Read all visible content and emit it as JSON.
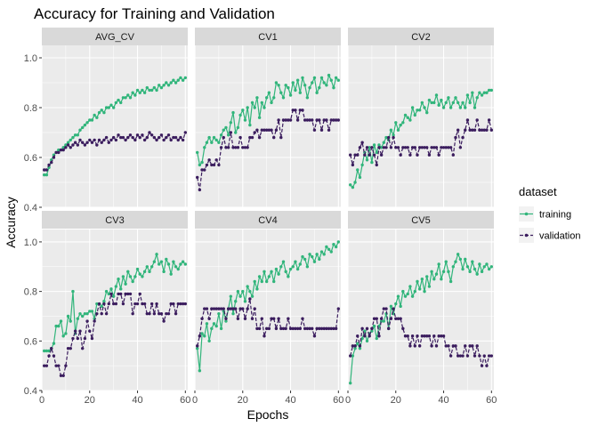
{
  "chart_data": {
    "type": "line",
    "title": "Accuracy for Training and Validation",
    "xlabel": "Epochs",
    "ylabel": "Accuracy",
    "facet_layout": {
      "rows": 2,
      "cols": 3
    },
    "x_range": [
      0,
      61
    ],
    "x_ticks": [
      0,
      20,
      40,
      60
    ],
    "y_range_top_row": [
      0.4,
      1.05
    ],
    "y_ticks_top_row": [
      0.4,
      0.6,
      0.8,
      1.0
    ],
    "y_range_bottom_row": [
      0.4,
      1.05
    ],
    "y_ticks_bottom_row": [
      0.4,
      0.6,
      0.8,
      1.0
    ],
    "grid": true,
    "legend": {
      "title": "dataset",
      "position": "right",
      "entries": [
        {
          "name": "training",
          "color": "#31b57b"
        },
        {
          "name": "validation",
          "color": "#3b1d5e"
        }
      ]
    },
    "x": [
      1,
      2,
      3,
      4,
      5,
      6,
      7,
      8,
      9,
      10,
      11,
      12,
      13,
      14,
      15,
      16,
      17,
      18,
      19,
      20,
      21,
      22,
      23,
      24,
      25,
      26,
      27,
      28,
      29,
      30,
      31,
      32,
      33,
      34,
      35,
      36,
      37,
      38,
      39,
      40,
      41,
      42,
      43,
      44,
      45,
      46,
      47,
      48,
      49,
      50,
      51,
      52,
      53,
      54,
      55,
      56,
      57,
      58,
      59,
      60
    ],
    "panels": [
      {
        "label": "AVG_CV",
        "series": [
          {
            "name": "training",
            "values": [
              0.53,
              0.53,
              0.56,
              0.59,
              0.61,
              0.62,
              0.63,
              0.63,
              0.64,
              0.65,
              0.66,
              0.67,
              0.68,
              0.69,
              0.69,
              0.71,
              0.72,
              0.73,
              0.74,
              0.75,
              0.75,
              0.77,
              0.76,
              0.78,
              0.79,
              0.78,
              0.8,
              0.8,
              0.81,
              0.8,
              0.82,
              0.83,
              0.82,
              0.84,
              0.84,
              0.85,
              0.84,
              0.86,
              0.85,
              0.87,
              0.86,
              0.87,
              0.86,
              0.88,
              0.87,
              0.87,
              0.88,
              0.87,
              0.89,
              0.88,
              0.89,
              0.9,
              0.89,
              0.9,
              0.91,
              0.9,
              0.91,
              0.92,
              0.91,
              0.92
            ]
          },
          {
            "name": "validation",
            "values": [
              0.55,
              0.55,
              0.57,
              0.58,
              0.6,
              0.62,
              0.62,
              0.63,
              0.63,
              0.64,
              0.65,
              0.64,
              0.65,
              0.66,
              0.65,
              0.67,
              0.66,
              0.65,
              0.66,
              0.67,
              0.66,
              0.67,
              0.65,
              0.67,
              0.66,
              0.67,
              0.68,
              0.66,
              0.67,
              0.68,
              0.67,
              0.69,
              0.68,
              0.68,
              0.67,
              0.68,
              0.69,
              0.68,
              0.67,
              0.69,
              0.68,
              0.69,
              0.67,
              0.68,
              0.7,
              0.69,
              0.68,
              0.67,
              0.68,
              0.69,
              0.67,
              0.68,
              0.69,
              0.67,
              0.68,
              0.68,
              0.67,
              0.68,
              0.67,
              0.7
            ]
          }
        ]
      },
      {
        "label": "CV1",
        "series": [
          {
            "name": "training",
            "values": [
              0.62,
              0.57,
              0.58,
              0.64,
              0.66,
              0.68,
              0.66,
              0.68,
              0.67,
              0.66,
              0.69,
              0.71,
              0.72,
              0.69,
              0.74,
              0.78,
              0.7,
              0.72,
              0.77,
              0.79,
              0.75,
              0.8,
              0.73,
              0.82,
              0.8,
              0.84,
              0.76,
              0.82,
              0.8,
              0.84,
              0.86,
              0.82,
              0.84,
              0.9,
              0.89,
              0.86,
              0.84,
              0.89,
              0.88,
              0.85,
              0.9,
              0.87,
              0.91,
              0.86,
              0.92,
              0.89,
              0.84,
              0.88,
              0.9,
              0.92,
              0.86,
              0.88,
              0.92,
              0.9,
              0.89,
              0.93,
              0.91,
              0.88,
              0.92,
              0.91
            ]
          },
          {
            "name": "validation",
            "values": [
              0.52,
              0.47,
              0.55,
              0.55,
              0.57,
              0.59,
              0.57,
              0.57,
              0.59,
              0.57,
              0.64,
              0.68,
              0.64,
              0.64,
              0.7,
              0.64,
              0.64,
              0.64,
              0.68,
              0.64,
              0.64,
              0.64,
              0.68,
              0.68,
              0.7,
              0.71,
              0.68,
              0.71,
              0.71,
              0.71,
              0.71,
              0.71,
              0.68,
              0.71,
              0.75,
              0.68,
              0.75,
              0.75,
              0.75,
              0.75,
              0.79,
              0.79,
              0.75,
              0.79,
              0.79,
              0.75,
              0.75,
              0.75,
              0.75,
              0.71,
              0.75,
              0.75,
              0.71,
              0.75,
              0.75,
              0.71,
              0.75,
              0.75,
              0.75,
              0.75
            ]
          }
        ]
      },
      {
        "label": "CV2",
        "series": [
          {
            "name": "training",
            "values": [
              0.49,
              0.48,
              0.5,
              0.55,
              0.52,
              0.57,
              0.62,
              0.59,
              0.64,
              0.58,
              0.65,
              0.62,
              0.65,
              0.64,
              0.66,
              0.68,
              0.67,
              0.71,
              0.69,
              0.74,
              0.71,
              0.73,
              0.74,
              0.77,
              0.76,
              0.75,
              0.8,
              0.77,
              0.79,
              0.79,
              0.82,
              0.8,
              0.78,
              0.83,
              0.82,
              0.82,
              0.85,
              0.81,
              0.83,
              0.8,
              0.82,
              0.84,
              0.8,
              0.82,
              0.84,
              0.82,
              0.8,
              0.82,
              0.8,
              0.85,
              0.82,
              0.86,
              0.8,
              0.84,
              0.86,
              0.85,
              0.86,
              0.86,
              0.87,
              0.87
            ]
          },
          {
            "name": "validation",
            "values": [
              0.61,
              0.57,
              0.61,
              0.61,
              0.64,
              0.66,
              0.61,
              0.64,
              0.61,
              0.64,
              0.61,
              0.57,
              0.64,
              0.61,
              0.64,
              0.64,
              0.68,
              0.64,
              0.68,
              0.64,
              0.64,
              0.61,
              0.64,
              0.64,
              0.64,
              0.61,
              0.64,
              0.64,
              0.61,
              0.64,
              0.64,
              0.64,
              0.64,
              0.61,
              0.64,
              0.64,
              0.64,
              0.61,
              0.64,
              0.64,
              0.64,
              0.64,
              0.64,
              0.61,
              0.68,
              0.71,
              0.64,
              0.68,
              0.71,
              0.75,
              0.71,
              0.71,
              0.71,
              0.75,
              0.71,
              0.71,
              0.71,
              0.71,
              0.75,
              0.71
            ]
          }
        ]
      },
      {
        "label": "CV3",
        "series": [
          {
            "name": "training",
            "values": [
              0.56,
              0.56,
              0.56,
              0.57,
              0.59,
              0.66,
              0.66,
              0.68,
              0.62,
              0.63,
              0.7,
              0.68,
              0.8,
              0.63,
              0.69,
              0.71,
              0.7,
              0.71,
              0.71,
              0.72,
              0.72,
              0.69,
              0.75,
              0.75,
              0.74,
              0.76,
              0.8,
              0.79,
              0.81,
              0.78,
              0.82,
              0.85,
              0.81,
              0.86,
              0.83,
              0.88,
              0.86,
              0.84,
              0.86,
              0.89,
              0.87,
              0.86,
              0.88,
              0.9,
              0.88,
              0.9,
              0.92,
              0.95,
              0.91,
              0.92,
              0.88,
              0.93,
              0.91,
              0.87,
              0.92,
              0.9,
              0.89,
              0.91,
              0.92,
              0.91
            ]
          },
          {
            "name": "validation",
            "values": [
              0.5,
              0.5,
              0.54,
              0.57,
              0.54,
              0.5,
              0.5,
              0.46,
              0.46,
              0.5,
              0.57,
              0.57,
              0.61,
              0.64,
              0.61,
              0.64,
              0.57,
              0.61,
              0.68,
              0.64,
              0.61,
              0.68,
              0.71,
              0.75,
              0.71,
              0.75,
              0.71,
              0.75,
              0.79,
              0.75,
              0.75,
              0.79,
              0.79,
              0.75,
              0.79,
              0.79,
              0.79,
              0.71,
              0.75,
              0.75,
              0.79,
              0.75,
              0.75,
              0.71,
              0.71,
              0.75,
              0.71,
              0.75,
              0.71,
              0.71,
              0.68,
              0.71,
              0.71,
              0.75,
              0.75,
              0.71,
              0.75,
              0.75,
              0.75,
              0.75
            ]
          }
        ]
      },
      {
        "label": "CV4",
        "series": [
          {
            "name": "training",
            "values": [
              0.57,
              0.48,
              0.63,
              0.62,
              0.67,
              0.6,
              0.65,
              0.67,
              0.66,
              0.71,
              0.65,
              0.72,
              0.68,
              0.73,
              0.78,
              0.71,
              0.76,
              0.8,
              0.78,
              0.8,
              0.76,
              0.82,
              0.8,
              0.78,
              0.84,
              0.81,
              0.86,
              0.84,
              0.88,
              0.84,
              0.86,
              0.88,
              0.84,
              0.89,
              0.87,
              0.9,
              0.92,
              0.88,
              0.86,
              0.89,
              0.9,
              0.92,
              0.89,
              0.91,
              0.94,
              0.93,
              0.9,
              0.95,
              0.94,
              0.92,
              0.95,
              0.93,
              0.96,
              0.95,
              0.98,
              0.97,
              0.96,
              0.99,
              0.98,
              1.0
            ]
          },
          {
            "name": "validation",
            "values": [
              0.58,
              0.62,
              0.69,
              0.73,
              0.73,
              0.69,
              0.73,
              0.73,
              0.73,
              0.73,
              0.73,
              0.73,
              0.69,
              0.73,
              0.73,
              0.73,
              0.73,
              0.69,
              0.73,
              0.73,
              0.69,
              0.73,
              0.77,
              0.69,
              0.73,
              0.65,
              0.65,
              0.69,
              0.62,
              0.65,
              0.65,
              0.69,
              0.69,
              0.65,
              0.69,
              0.65,
              0.65,
              0.65,
              0.69,
              0.65,
              0.65,
              0.65,
              0.65,
              0.65,
              0.69,
              0.65,
              0.65,
              0.65,
              0.65,
              0.62,
              0.65,
              0.65,
              0.65,
              0.65,
              0.65,
              0.65,
              0.65,
              0.65,
              0.65,
              0.73
            ]
          }
        ]
      },
      {
        "label": "CV5",
        "series": [
          {
            "name": "training",
            "values": [
              0.43,
              0.54,
              0.57,
              0.59,
              0.57,
              0.61,
              0.64,
              0.6,
              0.63,
              0.64,
              0.66,
              0.61,
              0.66,
              0.68,
              0.68,
              0.71,
              0.65,
              0.74,
              0.71,
              0.75,
              0.78,
              0.74,
              0.8,
              0.78,
              0.79,
              0.82,
              0.78,
              0.8,
              0.84,
              0.81,
              0.85,
              0.8,
              0.86,
              0.82,
              0.88,
              0.85,
              0.87,
              0.91,
              0.85,
              0.88,
              0.92,
              0.88,
              0.84,
              0.9,
              0.92,
              0.95,
              0.93,
              0.89,
              0.93,
              0.9,
              0.88,
              0.92,
              0.89,
              0.87,
              0.91,
              0.88,
              0.9,
              0.91,
              0.89,
              0.9
            ]
          },
          {
            "name": "validation",
            "values": [
              0.54,
              0.58,
              0.58,
              0.62,
              0.58,
              0.65,
              0.62,
              0.65,
              0.62,
              0.65,
              0.69,
              0.69,
              0.62,
              0.69,
              0.73,
              0.73,
              0.65,
              0.69,
              0.73,
              0.69,
              0.69,
              0.69,
              0.65,
              0.62,
              0.62,
              0.58,
              0.62,
              0.58,
              0.62,
              0.58,
              0.62,
              0.62,
              0.62,
              0.62,
              0.58,
              0.62,
              0.58,
              0.62,
              0.62,
              0.62,
              0.58,
              0.58,
              0.54,
              0.58,
              0.58,
              0.54,
              0.54,
              0.54,
              0.58,
              0.54,
              0.58,
              0.58,
              0.54,
              0.58,
              0.54,
              0.5,
              0.54,
              0.5,
              0.54,
              0.54
            ]
          }
        ]
      }
    ]
  }
}
